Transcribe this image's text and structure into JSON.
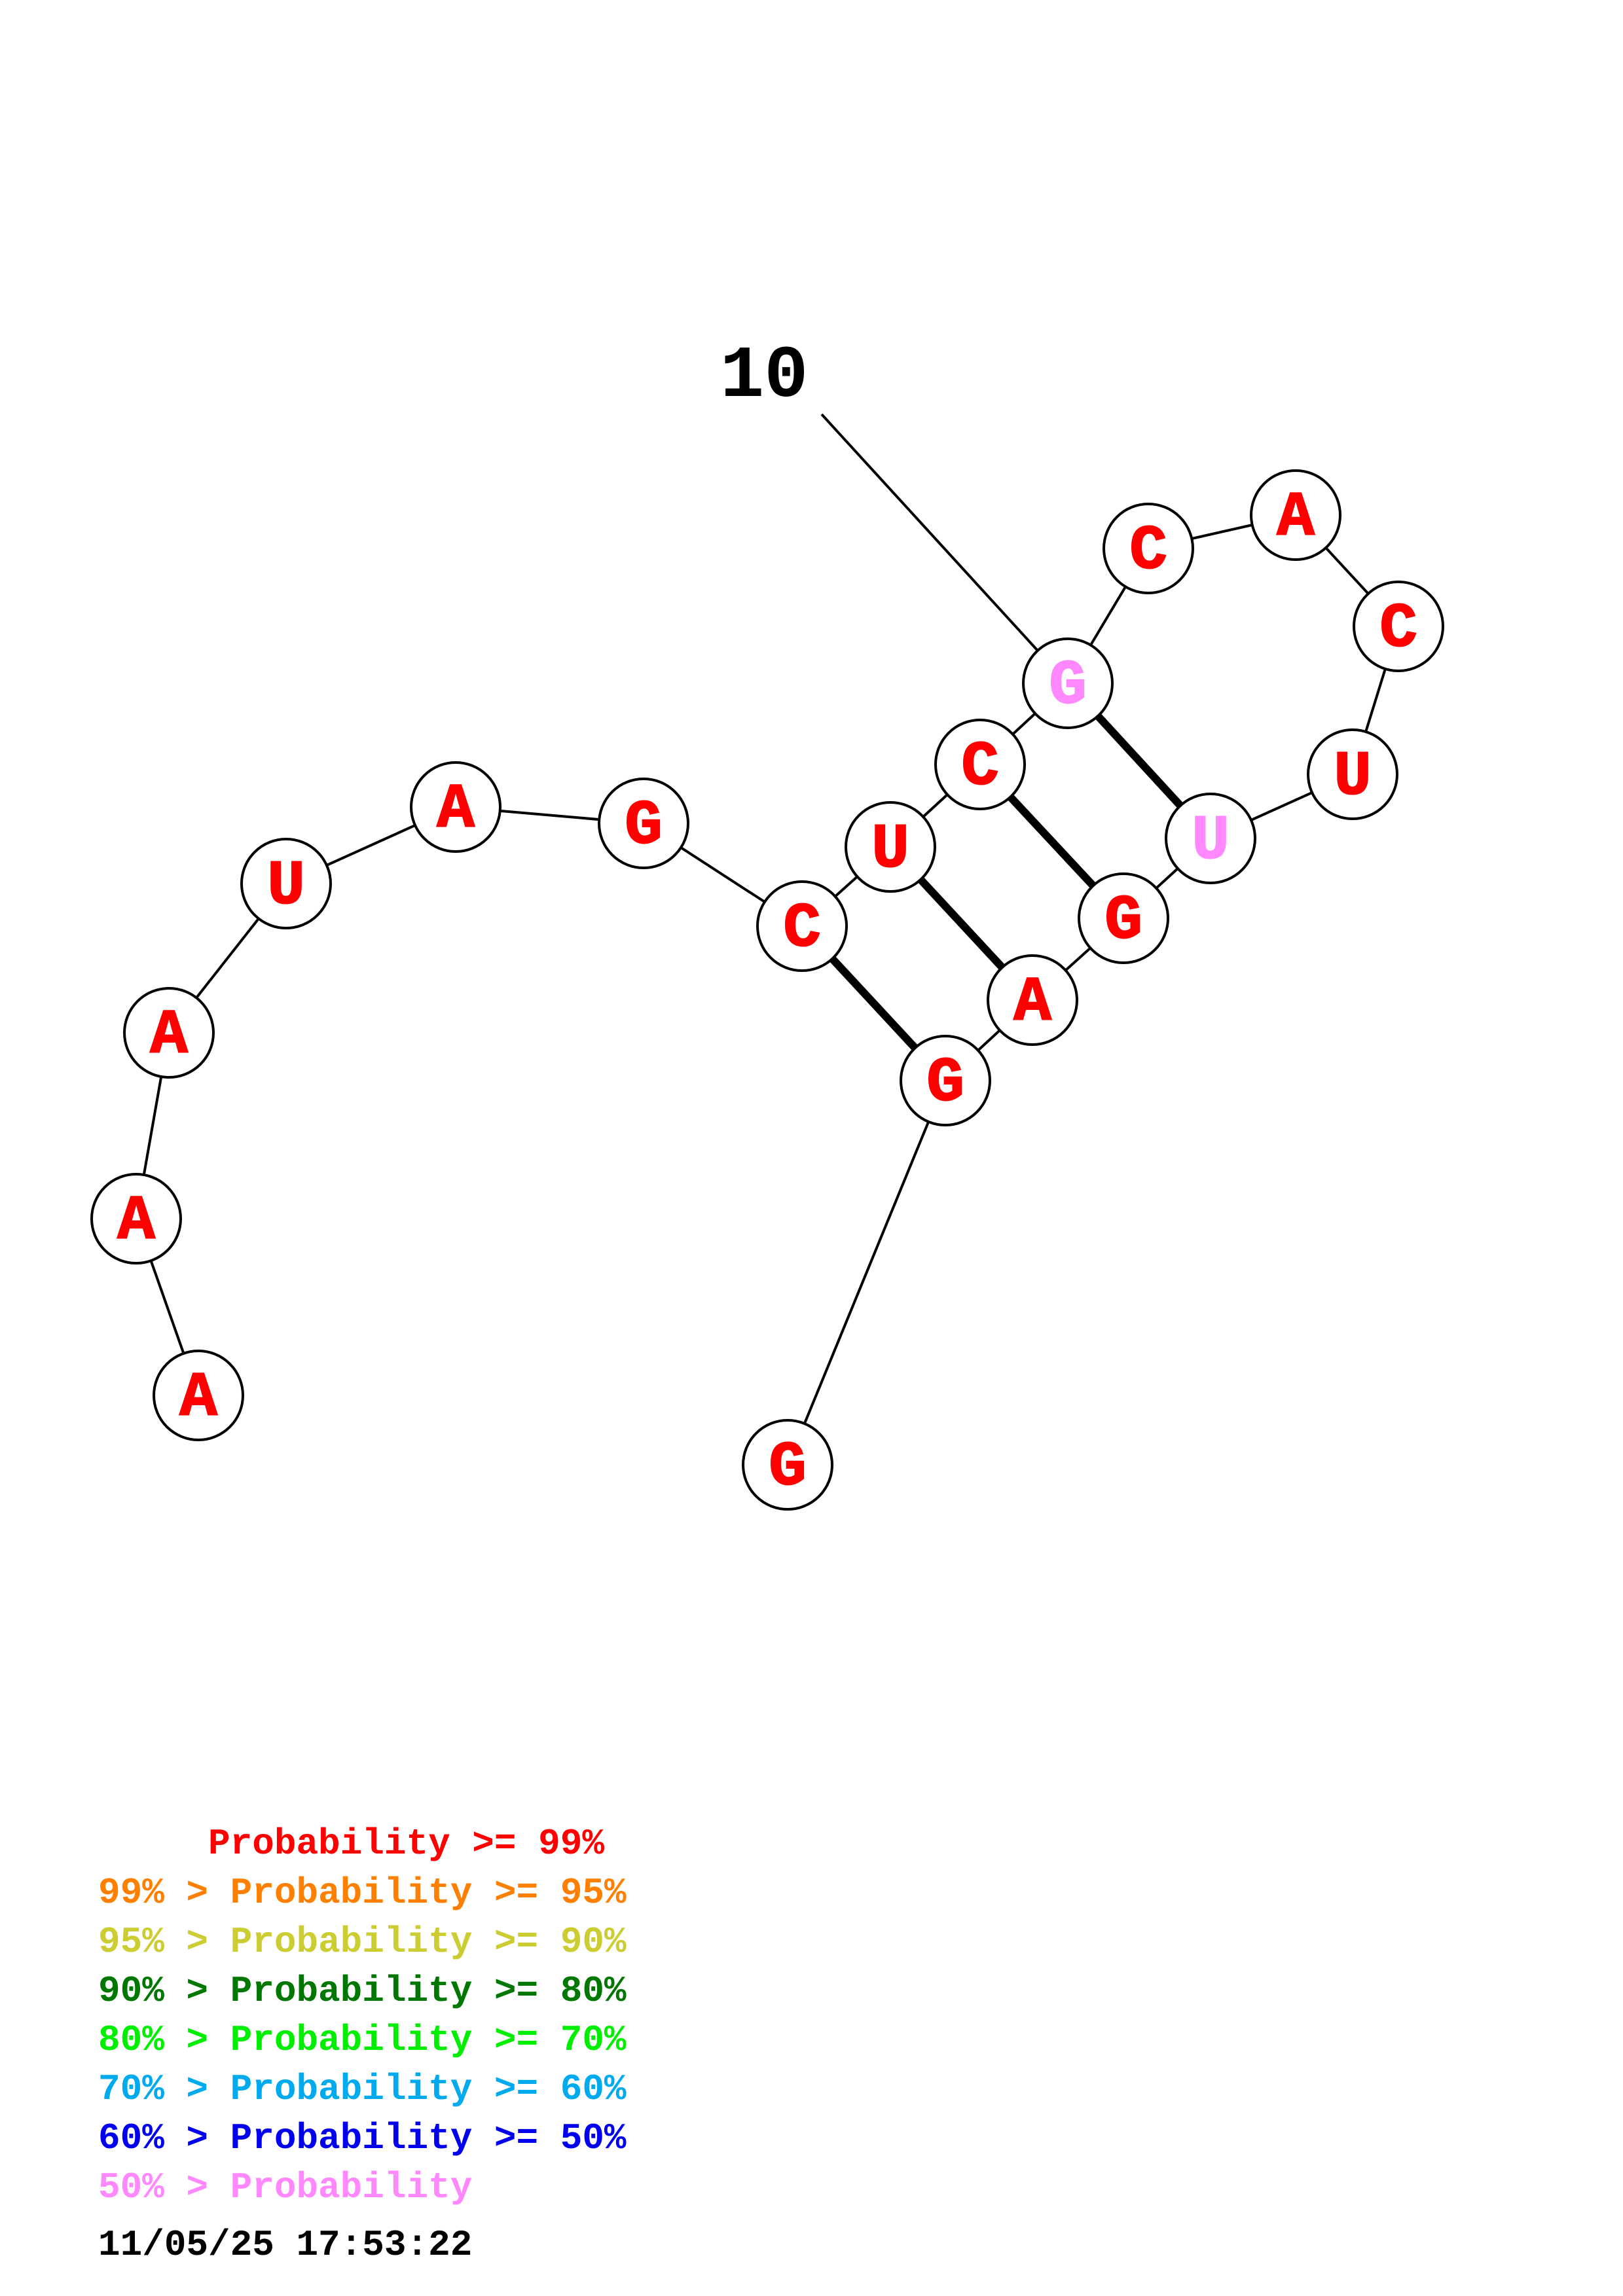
{
  "structure": {
    "index_label": "10",
    "nucleotides": [
      {
        "letter": "A",
        "color": "#ff0000"
      },
      {
        "letter": "A",
        "color": "#ff0000"
      },
      {
        "letter": "A",
        "color": "#ff0000"
      },
      {
        "letter": "U",
        "color": "#ff0000"
      },
      {
        "letter": "A",
        "color": "#ff0000"
      },
      {
        "letter": "G",
        "color": "#ff0000"
      },
      {
        "letter": "C",
        "color": "#ff0000"
      },
      {
        "letter": "U",
        "color": "#ff0000"
      },
      {
        "letter": "C",
        "color": "#ff0000"
      },
      {
        "letter": "G",
        "color": "#ff88ff"
      },
      {
        "letter": "C",
        "color": "#ff0000"
      },
      {
        "letter": "A",
        "color": "#ff0000"
      },
      {
        "letter": "C",
        "color": "#ff0000"
      },
      {
        "letter": "U",
        "color": "#ff0000"
      },
      {
        "letter": "U",
        "color": "#ff88ff"
      },
      {
        "letter": "G",
        "color": "#ff0000"
      },
      {
        "letter": "A",
        "color": "#ff0000"
      },
      {
        "letter": "G",
        "color": "#ff0000"
      },
      {
        "letter": "G",
        "color": "#ff0000"
      }
    ],
    "base_pairs": [
      [
        7,
        18
      ],
      [
        8,
        17
      ],
      [
        9,
        16
      ],
      [
        10,
        15
      ]
    ]
  },
  "legend": [
    {
      "text": "     Probability >= 99%",
      "color": "#ff0000"
    },
    {
      "text": "99% > Probability >= 95%",
      "color": "#ff8000"
    },
    {
      "text": "95% > Probability >= 90%",
      "color": "#cccc33"
    },
    {
      "text": "90% > Probability >= 80%",
      "color": "#007700"
    },
    {
      "text": "80% > Probability >= 70%",
      "color": "#00ee00"
    },
    {
      "text": "70% > Probability >= 60%",
      "color": "#00aaee"
    },
    {
      "text": "60% > Probability >= 50%",
      "color": "#0000ee"
    },
    {
      "text": "50% > Probability",
      "color": "#ff88ff"
    }
  ],
  "timestamp": "11/05/25 17:53:22"
}
